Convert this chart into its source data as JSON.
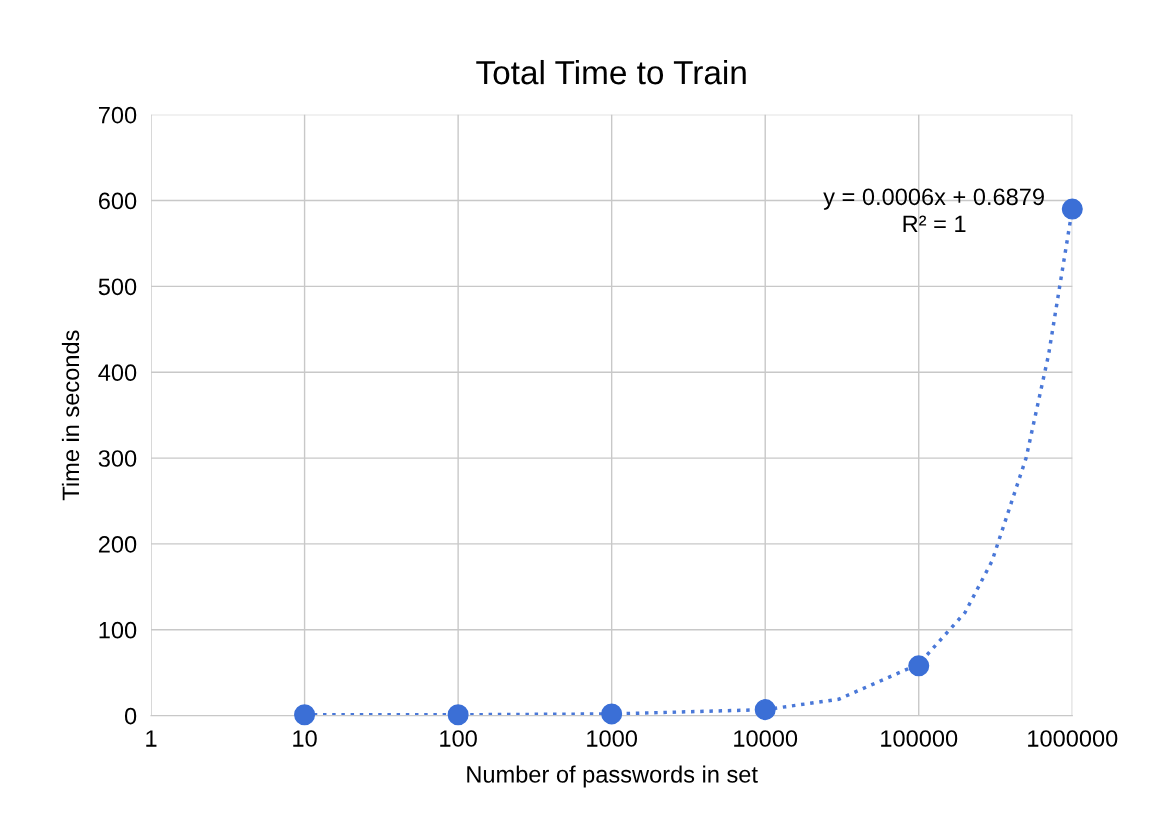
{
  "chart_data": {
    "type": "scatter",
    "title": "Total Time to Train",
    "xlabel": "Number of passwords in set",
    "ylabel": "Time in seconds",
    "log": "x",
    "xlim": [
      1,
      1000000
    ],
    "xticks": [
      1,
      10,
      100,
      1000,
      10000,
      100000,
      1000000
    ],
    "ylim": [
      0,
      700
    ],
    "yticks": [
      0,
      100,
      200,
      300,
      400,
      500,
      600,
      700
    ],
    "grid": true,
    "legend": false,
    "series": [
      {
        "color": "#3b6fd6",
        "marker": "circle",
        "x": [
          10,
          100,
          1000,
          10000,
          100000,
          1000000
        ],
        "values": [
          1,
          1,
          2,
          7,
          58,
          590
        ]
      },
      {
        "type": "line",
        "color": "#4a78d8",
        "line_style": "dotted",
        "marker": "none",
        "x": [
          10,
          100,
          1000,
          10000,
          30000,
          100000,
          200000,
          300000,
          500000,
          700000,
          1000000
        ],
        "values": [
          1,
          1,
          2,
          7,
          19,
          60,
          120,
          180,
          300,
          420,
          590
        ]
      }
    ],
    "annotations": [
      "y = 0.0006x + 0.6879",
      "R² = 1"
    ]
  }
}
